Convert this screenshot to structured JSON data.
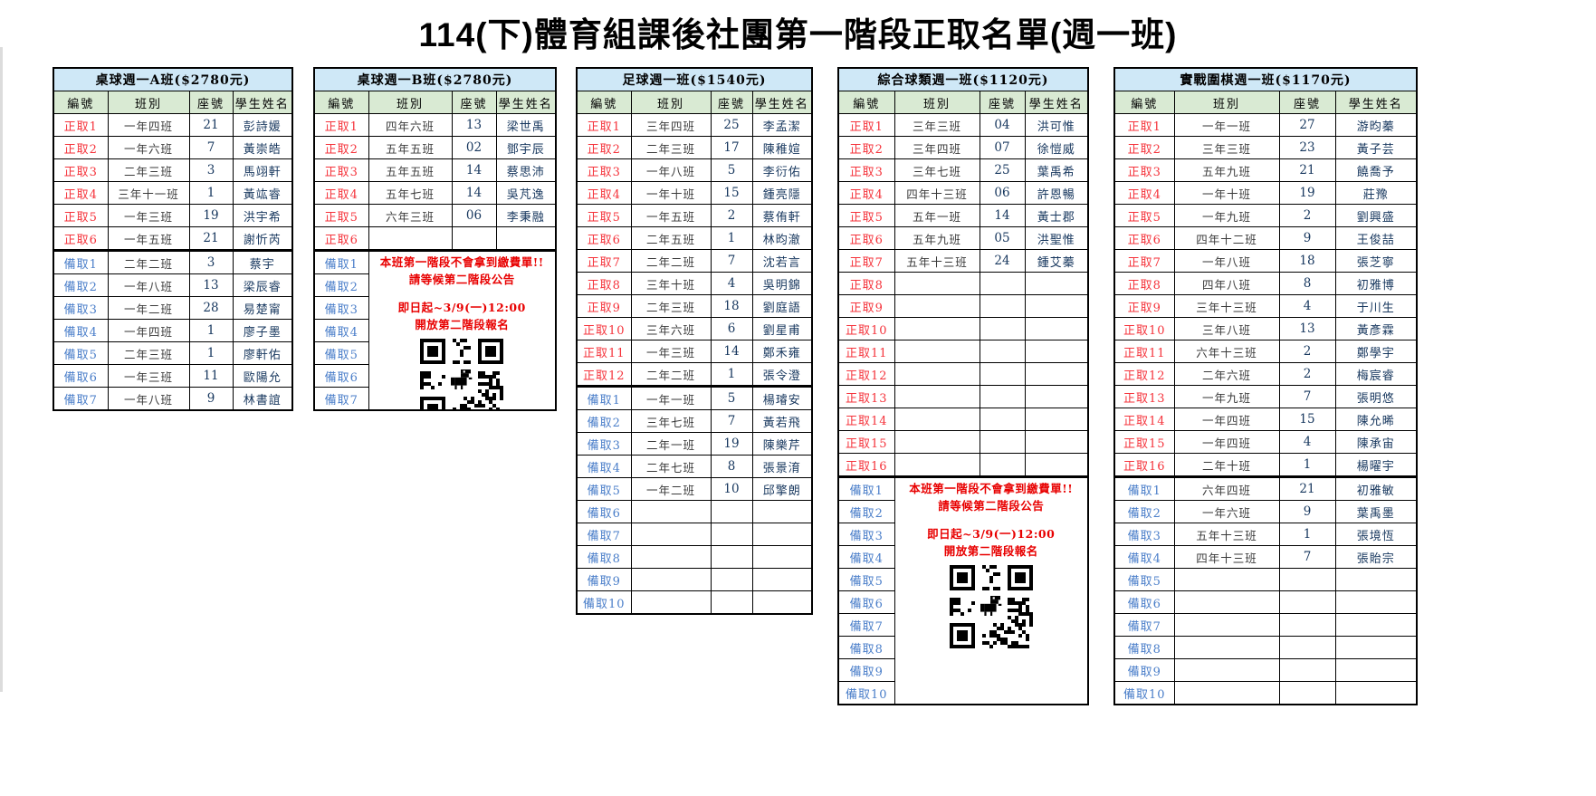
{
  "page_title": "114(下)體育組課後社團第一階段正取名單(週一班)",
  "columns": [
    "編號",
    "班別",
    "座號",
    "學生姓名"
  ],
  "notice": {
    "lines": [
      "本班第一階段不會拿到繳費單!!",
      "請等候第二階段公告",
      "",
      "即日起~3/9(一)12:00",
      "開放第二階段報名"
    ],
    "qr_icon": "qr-code-with-dino"
  },
  "colors": {
    "title-bar": "#cfe8f7",
    "header-bg": "#d9ead3",
    "admit-red": "#f5333b",
    "wait-blue": "#4a7ec9",
    "notice-red": "#e80000",
    "navy": "#17375e",
    "class-gray": "#3a3a3a"
  },
  "tables": [
    {
      "title": "桌球週一A班($2780元)",
      "notice_merged": false,
      "rows": [
        {
          "label": "正取1",
          "cls": "一年四班",
          "seat": "21",
          "name": "彭詩媛"
        },
        {
          "label": "正取2",
          "cls": "一年六班",
          "seat": "7",
          "name": "黃崇皓"
        },
        {
          "label": "正取3",
          "cls": "二年三班",
          "seat": "3",
          "name": "馬翊軒"
        },
        {
          "label": "正取4",
          "cls": "三年十一班",
          "seat": "1",
          "name": "黃竑睿"
        },
        {
          "label": "正取5",
          "cls": "一年三班",
          "seat": "19",
          "name": "洪宇希"
        },
        {
          "label": "正取6",
          "cls": "一年五班",
          "seat": "21",
          "name": "謝忻芮"
        },
        {
          "label": "備取1",
          "cls": "二年二班",
          "seat": "3",
          "name": "蔡宇"
        },
        {
          "label": "備取2",
          "cls": "一年八班",
          "seat": "13",
          "name": "梁辰睿"
        },
        {
          "label": "備取3",
          "cls": "一年二班",
          "seat": "28",
          "name": "易楚甯"
        },
        {
          "label": "備取4",
          "cls": "一年四班",
          "seat": "1",
          "name": "廖子墨"
        },
        {
          "label": "備取5",
          "cls": "二年三班",
          "seat": "1",
          "name": "廖軒佑"
        },
        {
          "label": "備取6",
          "cls": "一年三班",
          "seat": "11",
          "name": "歐陽允"
        },
        {
          "label": "備取7",
          "cls": "一年八班",
          "seat": "9",
          "name": "林書誼"
        }
      ]
    },
    {
      "title": "桌球週一B班($2780元)",
      "notice_merged": true,
      "rows": [
        {
          "label": "正取1",
          "cls": "四年六班",
          "seat": "13",
          "name": "梁世禹"
        },
        {
          "label": "正取2",
          "cls": "五年五班",
          "seat": "02",
          "name": "鄧宇辰"
        },
        {
          "label": "正取3",
          "cls": "五年五班",
          "seat": "14",
          "name": "蔡思沛"
        },
        {
          "label": "正取4",
          "cls": "五年七班",
          "seat": "14",
          "name": "吳芃逸"
        },
        {
          "label": "正取5",
          "cls": "六年三班",
          "seat": "06",
          "name": "李秉融"
        },
        {
          "label": "正取6",
          "cls": "",
          "seat": "",
          "name": ""
        },
        {
          "label": "備取1"
        },
        {
          "label": "備取2"
        },
        {
          "label": "備取3"
        },
        {
          "label": "備取4"
        },
        {
          "label": "備取5"
        },
        {
          "label": "備取6"
        },
        {
          "label": "備取7"
        }
      ]
    },
    {
      "title": "足球週一班($1540元)",
      "notice_merged": false,
      "rows": [
        {
          "label": "正取1",
          "cls": "三年四班",
          "seat": "25",
          "name": "李孟潔"
        },
        {
          "label": "正取2",
          "cls": "二年三班",
          "seat": "17",
          "name": "陳稚媗"
        },
        {
          "label": "正取3",
          "cls": "一年八班",
          "seat": "5",
          "name": "李衍佑"
        },
        {
          "label": "正取4",
          "cls": "一年十班",
          "seat": "15",
          "name": "鍾亮隱"
        },
        {
          "label": "正取5",
          "cls": "一年五班",
          "seat": "2",
          "name": "蔡侑軒"
        },
        {
          "label": "正取6",
          "cls": "二年五班",
          "seat": "1",
          "name": "林昀澈"
        },
        {
          "label": "正取7",
          "cls": "二年二班",
          "seat": "7",
          "name": "沈若言"
        },
        {
          "label": "正取8",
          "cls": "三年十班",
          "seat": "4",
          "name": "吳明錦"
        },
        {
          "label": "正取9",
          "cls": "二年三班",
          "seat": "18",
          "name": "劉庭語"
        },
        {
          "label": "正取10",
          "cls": "三年六班",
          "seat": "6",
          "name": "劉星甫"
        },
        {
          "label": "正取11",
          "cls": "一年三班",
          "seat": "14",
          "name": "鄭禾雍"
        },
        {
          "label": "正取12",
          "cls": "二年二班",
          "seat": "1",
          "name": "張令澄"
        },
        {
          "label": "備取1",
          "cls": "一年一班",
          "seat": "5",
          "name": "楊璿安"
        },
        {
          "label": "備取2",
          "cls": "三年七班",
          "seat": "7",
          "name": "黃若飛"
        },
        {
          "label": "備取3",
          "cls": "二年一班",
          "seat": "19",
          "name": "陳樂芹"
        },
        {
          "label": "備取4",
          "cls": "二年七班",
          "seat": "8",
          "name": "張景淯"
        },
        {
          "label": "備取5",
          "cls": "一年二班",
          "seat": "10",
          "name": "邱擎朗"
        },
        {
          "label": "備取6",
          "cls": "",
          "seat": "",
          "name": ""
        },
        {
          "label": "備取7",
          "cls": "",
          "seat": "",
          "name": ""
        },
        {
          "label": "備取8",
          "cls": "",
          "seat": "",
          "name": ""
        },
        {
          "label": "備取9",
          "cls": "",
          "seat": "",
          "name": ""
        },
        {
          "label": "備取10",
          "cls": "",
          "seat": "",
          "name": ""
        }
      ]
    },
    {
      "title": "綜合球類週一班($1120元)",
      "notice_merged": true,
      "rows": [
        {
          "label": "正取1",
          "cls": "三年三班",
          "seat": "04",
          "name": "洪可惟"
        },
        {
          "label": "正取2",
          "cls": "三年四班",
          "seat": "07",
          "name": "徐愷威"
        },
        {
          "label": "正取3",
          "cls": "三年七班",
          "seat": "25",
          "name": "葉禹希"
        },
        {
          "label": "正取4",
          "cls": "四年十三班",
          "seat": "06",
          "name": "許恩暢"
        },
        {
          "label": "正取5",
          "cls": "五年一班",
          "seat": "14",
          "name": "黃士郡"
        },
        {
          "label": "正取6",
          "cls": "五年九班",
          "seat": "05",
          "name": "洪聖惟"
        },
        {
          "label": "正取7",
          "cls": "五年十三班",
          "seat": "24",
          "name": "鍾艾蓁"
        },
        {
          "label": "正取8",
          "cls": "",
          "seat": "",
          "name": ""
        },
        {
          "label": "正取9",
          "cls": "",
          "seat": "",
          "name": ""
        },
        {
          "label": "正取10",
          "cls": "",
          "seat": "",
          "name": ""
        },
        {
          "label": "正取11",
          "cls": "",
          "seat": "",
          "name": ""
        },
        {
          "label": "正取12",
          "cls": "",
          "seat": "",
          "name": ""
        },
        {
          "label": "正取13",
          "cls": "",
          "seat": "",
          "name": ""
        },
        {
          "label": "正取14",
          "cls": "",
          "seat": "",
          "name": ""
        },
        {
          "label": "正取15",
          "cls": "",
          "seat": "",
          "name": ""
        },
        {
          "label": "正取16",
          "cls": "",
          "seat": "",
          "name": ""
        },
        {
          "label": "備取1"
        },
        {
          "label": "備取2"
        },
        {
          "label": "備取3"
        },
        {
          "label": "備取4"
        },
        {
          "label": "備取5"
        },
        {
          "label": "備取6"
        },
        {
          "label": "備取7"
        },
        {
          "label": "備取8"
        },
        {
          "label": "備取9"
        },
        {
          "label": "備取10"
        }
      ]
    },
    {
      "title": "實戰圍棋週一班($1170元)",
      "notice_merged": false,
      "rows": [
        {
          "label": "正取1",
          "cls": "一年一班",
          "seat": "27",
          "name": "游昀蓁"
        },
        {
          "label": "正取2",
          "cls": "三年三班",
          "seat": "23",
          "name": "黃子芸"
        },
        {
          "label": "正取3",
          "cls": "五年九班",
          "seat": "21",
          "name": "饒喬予"
        },
        {
          "label": "正取4",
          "cls": "一年十班",
          "seat": "19",
          "name": "莊豫"
        },
        {
          "label": "正取5",
          "cls": "一年九班",
          "seat": "2",
          "name": "劉興盛"
        },
        {
          "label": "正取6",
          "cls": "四年十二班",
          "seat": "9",
          "name": "王俊喆"
        },
        {
          "label": "正取7",
          "cls": "一年八班",
          "seat": "18",
          "name": "張芝寧"
        },
        {
          "label": "正取8",
          "cls": "四年八班",
          "seat": "8",
          "name": "初雅博"
        },
        {
          "label": "正取9",
          "cls": "三年十三班",
          "seat": "4",
          "name": "于川生"
        },
        {
          "label": "正取10",
          "cls": "三年八班",
          "seat": "13",
          "name": "黃彥霖"
        },
        {
          "label": "正取11",
          "cls": "六年十三班",
          "seat": "2",
          "name": "鄭學宇"
        },
        {
          "label": "正取12",
          "cls": "二年六班",
          "seat": "2",
          "name": "梅宸睿"
        },
        {
          "label": "正取13",
          "cls": "一年九班",
          "seat": "7",
          "name": "張明悠"
        },
        {
          "label": "正取14",
          "cls": "一年四班",
          "seat": "15",
          "name": "陳允晞"
        },
        {
          "label": "正取15",
          "cls": "一年四班",
          "seat": "4",
          "name": "陳承宙"
        },
        {
          "label": "正取16",
          "cls": "二年十班",
          "seat": "1",
          "name": "楊曜宇"
        },
        {
          "label": "備取1",
          "cls": "六年四班",
          "seat": "21",
          "name": "初雅敏"
        },
        {
          "label": "備取2",
          "cls": "一年六班",
          "seat": "9",
          "name": "葉禹墨"
        },
        {
          "label": "備取3",
          "cls": "五年十三班",
          "seat": "1",
          "name": "張境恆"
        },
        {
          "label": "備取4",
          "cls": "四年十三班",
          "seat": "7",
          "name": "張貽宗"
        },
        {
          "label": "備取5",
          "cls": "",
          "seat": "",
          "name": ""
        },
        {
          "label": "備取6",
          "cls": "",
          "seat": "",
          "name": ""
        },
        {
          "label": "備取7",
          "cls": "",
          "seat": "",
          "name": ""
        },
        {
          "label": "備取8",
          "cls": "",
          "seat": "",
          "name": ""
        },
        {
          "label": "備取9",
          "cls": "",
          "seat": "",
          "name": ""
        },
        {
          "label": "備取10",
          "cls": "",
          "seat": "",
          "name": ""
        }
      ]
    }
  ]
}
